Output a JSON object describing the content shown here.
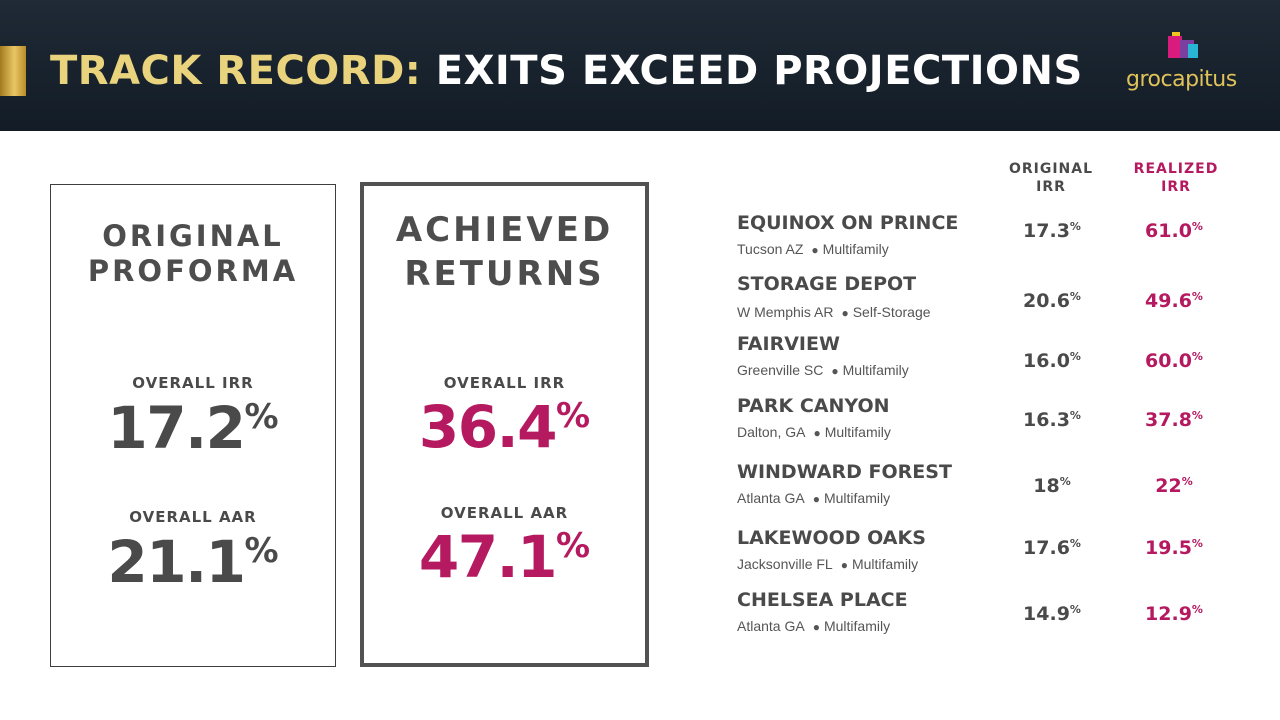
{
  "header": {
    "title_accent": "TRACK RECORD:",
    "title_rest": "EXITS EXCEED PROJECTIONS",
    "logo_text": "grocapitus"
  },
  "original_card": {
    "title_line1": "ORIGINAL",
    "title_line2": "PROFORMA",
    "irr_label": "OVERALL IRR",
    "irr_value": "17.2",
    "aar_label": "OVERALL AAR",
    "aar_value": "21.1",
    "pct_sign": "%"
  },
  "achieved_card": {
    "title_line1": "ACHIEVED",
    "title_line2": "RETURNS",
    "irr_label": "OVERALL IRR",
    "irr_value": "36.4",
    "aar_label": "OVERALL AAR",
    "aar_value": "47.1",
    "pct_sign": "%"
  },
  "table": {
    "col_original_line1": "ORIGINAL",
    "col_original_line2": "IRR",
    "col_realized_line1": "REALIZED",
    "col_realized_line2": "IRR",
    "pct_sign": "%",
    "rows": [
      {
        "name": "EQUINOX ON PRINCE",
        "location": "Tucson AZ",
        "type": "Multifamily",
        "original": "17.3",
        "realized": "61.0"
      },
      {
        "name": "STORAGE DEPOT",
        "location": "W Memphis AR",
        "type": "Self-Storage",
        "original": "20.6",
        "realized": "49.6"
      },
      {
        "name": "FAIRVIEW",
        "location": "Greenville SC",
        "type": "Multifamily",
        "original": "16.0",
        "realized": "60.0"
      },
      {
        "name": "PARK CANYON",
        "location": "Dalton, GA",
        "type": "Multifamily",
        "original": "16.3",
        "realized": "37.8"
      },
      {
        "name": "WINDWARD FOREST",
        "location": "Atlanta GA",
        "type": "Multifamily",
        "original": "18",
        "realized": "22"
      },
      {
        "name": "LAKEWOOD OAKS",
        "location": "Jacksonville FL",
        "type": "Multifamily",
        "original": "17.6",
        "realized": "19.5"
      },
      {
        "name": "CHELSEA PLACE",
        "location": "Atlanta GA",
        "type": "Multifamily",
        "original": "14.9",
        "realized": "12.9"
      }
    ]
  }
}
